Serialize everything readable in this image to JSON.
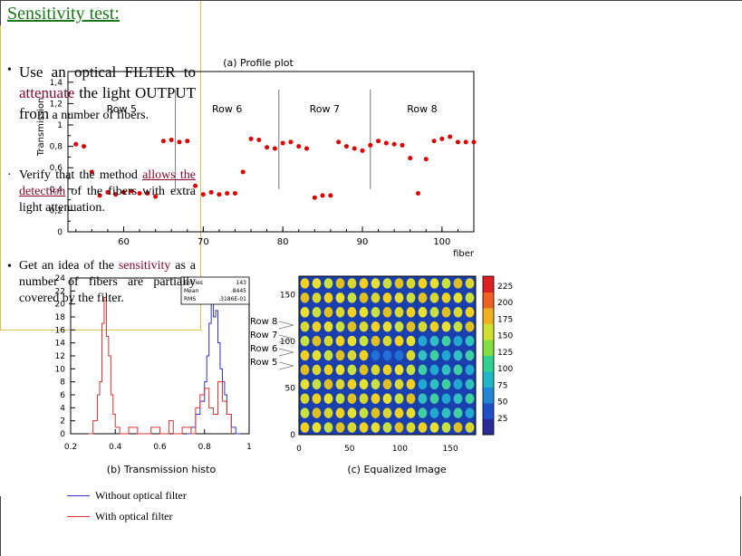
{
  "chart_data": [
    {
      "type": "scatter",
      "title": "(a) Profile plot",
      "xlabel": "fiber",
      "ylabel": "Transmission",
      "xlim": [
        53,
        104
      ],
      "ylim": [
        0,
        1.5
      ],
      "yticks": [
        "0",
        "0,2",
        "0,4",
        "0,6",
        "0,8",
        "1",
        "1,2",
        "1,4"
      ],
      "xticks": [
        "60",
        "70",
        "80",
        "90",
        "100"
      ],
      "grid": false,
      "row_labels": [
        "Row 5",
        "Row 6",
        "Row 7",
        "Row 8"
      ],
      "row_dividers": [
        66.5,
        79.5,
        91
      ],
      "series": [
        {
          "color": "#e00000",
          "x": [
            54,
            55,
            56,
            57,
            58,
            59,
            60,
            61,
            62,
            63,
            64,
            65,
            66,
            67,
            68,
            69,
            70,
            71,
            72,
            73,
            74,
            75,
            76,
            77,
            78,
            79,
            80,
            81,
            82,
            83,
            84,
            85,
            86,
            87,
            88,
            89,
            90,
            91,
            92,
            93,
            94,
            95,
            96,
            97,
            98,
            99,
            100,
            101,
            102,
            103,
            104
          ],
          "y": [
            0.82,
            0.8,
            0.56,
            0.34,
            0.37,
            0.35,
            0.37,
            0.38,
            0.36,
            0.36,
            0.33,
            0.85,
            0.86,
            0.84,
            0.85,
            0.43,
            0.35,
            0.37,
            0.35,
            0.36,
            0.36,
            0.56,
            0.87,
            0.86,
            0.79,
            0.78,
            0.83,
            0.84,
            0.8,
            0.78,
            0.32,
            0.34,
            0.34,
            0.84,
            0.8,
            0.78,
            0.76,
            0.81,
            0.85,
            0.83,
            0.82,
            0.81,
            0.69,
            0.36,
            0.68,
            0.85,
            0.87,
            0.89,
            0.84,
            0.84,
            0.84
          ]
        }
      ]
    },
    {
      "type": "line",
      "title": "(b) Transmission histo",
      "xlim": [
        0.2,
        1
      ],
      "ylim": [
        0,
        24
      ],
      "xticks": [
        "0.2",
        "0.4",
        "0.6",
        "0.8",
        "1"
      ],
      "yticks": [
        "0",
        "2",
        "4",
        "6",
        "8",
        "10",
        "12",
        "14",
        "16",
        "18",
        "20",
        "22",
        "24"
      ],
      "stats": {
        "Entries": "143",
        "Mean": ".8445",
        "RMS": ".3186E-01"
      },
      "series": [
        {
          "name": "Without optical filter",
          "color": "#3030d0",
          "x": [
            0.72,
            0.74,
            0.76,
            0.78,
            0.8,
            0.81,
            0.82,
            0.83,
            0.84,
            0.85,
            0.86,
            0.87,
            0.88,
            0.89,
            0.9,
            0.92,
            0.94
          ],
          "y": [
            0,
            1,
            3,
            5,
            8,
            12,
            17,
            20,
            18,
            19,
            14,
            10,
            8,
            6,
            3,
            1,
            0
          ]
        },
        {
          "name": "With optical filter",
          "color": "#e03030",
          "x": [
            0.28,
            0.3,
            0.32,
            0.33,
            0.34,
            0.35,
            0.36,
            0.37,
            0.38,
            0.39,
            0.4,
            0.42,
            0.46,
            0.5,
            0.54,
            0.56,
            0.6,
            0.64,
            0.66,
            0.7,
            0.74,
            0.76,
            0.78,
            0.8,
            0.82,
            0.84,
            0.86,
            0.88,
            0.9
          ],
          "y": [
            0,
            2,
            6,
            8,
            17,
            21,
            15,
            12,
            6,
            3,
            1,
            0,
            1,
            0,
            0,
            1,
            0,
            2,
            0,
            1,
            0,
            4,
            6,
            7,
            4,
            3,
            8,
            5,
            3
          ]
        }
      ]
    },
    {
      "type": "heatmap",
      "title": "(c) Equalized Image",
      "xticks": [
        "0",
        "50",
        "100",
        "150"
      ],
      "yticks": [
        "0",
        "50",
        "100",
        "150"
      ],
      "xlim": [
        0,
        175
      ],
      "ylim": [
        0,
        170
      ],
      "colorbar": [
        "25",
        "50",
        "75",
        "100",
        "125",
        "150",
        "175",
        "200",
        "225"
      ],
      "row_labels": [
        "Row 8",
        "Row 7",
        "Row 6",
        "Row 5"
      ],
      "grid_rows": 11,
      "grid_cols": 15
    }
  ],
  "infobox": {
    "title": "Sensitivity test:",
    "bullet1": {
      "part1": "Use an optical FILTER to ",
      "highlight": "attenuate",
      "part2": " the light OUTPUT from",
      "small": " a number of fibers."
    },
    "bullet2": {
      "part1": "Verify that the method ",
      "highlight": "allows the detection",
      "part2": " of the fibers with extra light attenuation."
    },
    "bullet3": {
      "part1": "Get an idea of the ",
      "highlight": "sensitivity",
      "part2": " as a number of fibers are partially covered by the filter."
    }
  },
  "legend": {
    "without": "Without optical filter",
    "with": "With optical filter"
  },
  "colors": {
    "blue": "#3030d0",
    "red": "#e03030",
    "dot": "#e00000",
    "border": "#e0c24a"
  }
}
